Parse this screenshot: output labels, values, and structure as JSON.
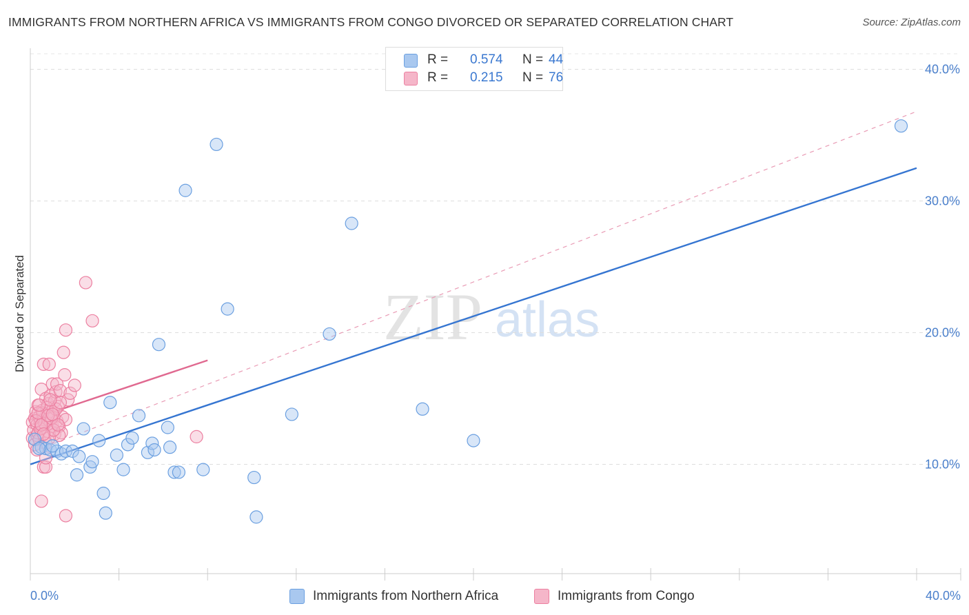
{
  "title": "IMMIGRANTS FROM NORTHERN AFRICA VS IMMIGRANTS FROM CONGO DIVORCED OR SEPARATED CORRELATION CHART",
  "source": "Source: ZipAtlas.com",
  "watermark": {
    "zip": "ZIP",
    "atlas": "atlas"
  },
  "legend": {
    "rows": [
      {
        "r_label": "R =",
        "r_value": "0.574",
        "n_label": "N =",
        "n_value": "44",
        "color": "#a9c8ef"
      },
      {
        "r_label": "R =",
        "r_value": "0.215",
        "n_label": "N =",
        "n_value": "76",
        "color": "#f5b6c9"
      }
    ]
  },
  "bottom_legend": [
    {
      "label": "Immigrants from Northern Africa",
      "color": "#a9c8ef"
    },
    {
      "label": "Immigrants from Congo",
      "color": "#f5b6c9"
    }
  ],
  "chart_data": {
    "type": "scatter",
    "title": "IMMIGRANTS FROM NORTHERN AFRICA VS IMMIGRANTS FROM CONGO DIVORCED OR SEPARATED CORRELATION CHART",
    "xlabel": "",
    "ylabel": "Divorced or Separated",
    "xlim": [
      0,
      40
    ],
    "ylim": [
      1.7,
      41.6
    ],
    "x_tick_labels": [
      "0.0%",
      "40.0%"
    ],
    "y_ticks": [
      10,
      20,
      30,
      40
    ],
    "y_tick_labels": [
      "10.0%",
      "20.0%",
      "30.0%",
      "40.0%"
    ],
    "grid": true,
    "series": [
      {
        "name": "Immigrants from Northern Africa",
        "color": "#6a9fe0",
        "fill": "#a9c8ef",
        "R": 0.574,
        "N": 44,
        "trend": {
          "x": [
            0,
            40
          ],
          "y": [
            10.0,
            32.5
          ],
          "style": "solid",
          "color": "#3575d1"
        },
        "points": [
          [
            0.2,
            11.9
          ],
          [
            0.5,
            11.3
          ],
          [
            0.7,
            11.2
          ],
          [
            0.9,
            11.1
          ],
          [
            1.2,
            11.0
          ],
          [
            1.4,
            10.8
          ],
          [
            1.6,
            11.0
          ],
          [
            1.9,
            11.0
          ],
          [
            2.2,
            10.6
          ],
          [
            2.1,
            9.2
          ],
          [
            2.4,
            12.7
          ],
          [
            2.7,
            9.8
          ],
          [
            2.8,
            10.2
          ],
          [
            3.1,
            11.8
          ],
          [
            3.3,
            7.8
          ],
          [
            3.4,
            6.3
          ],
          [
            3.6,
            14.7
          ],
          [
            3.9,
            10.7
          ],
          [
            4.2,
            9.6
          ],
          [
            4.4,
            11.5
          ],
          [
            4.6,
            12.0
          ],
          [
            4.9,
            13.7
          ],
          [
            5.3,
            10.9
          ],
          [
            5.5,
            11.6
          ],
          [
            5.6,
            11.1
          ],
          [
            5.8,
            19.1
          ],
          [
            6.2,
            12.8
          ],
          [
            6.3,
            11.3
          ],
          [
            6.5,
            9.4
          ],
          [
            6.7,
            9.4
          ],
          [
            7.0,
            30.8
          ],
          [
            7.8,
            9.6
          ],
          [
            8.4,
            34.3
          ],
          [
            8.9,
            21.8
          ],
          [
            10.1,
            9.0
          ],
          [
            10.2,
            6.0
          ],
          [
            11.8,
            13.8
          ],
          [
            13.5,
            19.9
          ],
          [
            14.5,
            28.3
          ],
          [
            17.7,
            14.2
          ],
          [
            20.0,
            11.8
          ],
          [
            39.3,
            35.7
          ],
          [
            0.4,
            11.2
          ],
          [
            1.0,
            11.4
          ]
        ]
      },
      {
        "name": "Immigrants from Congo",
        "color": "#ec7fa0",
        "fill": "#f5b6c9",
        "R": 0.215,
        "N": 76,
        "trend": {
          "x": [
            0,
            8.0
          ],
          "y": [
            13.4,
            17.9
          ],
          "style": "solid",
          "color": "#e06990"
        },
        "trend_extended": {
          "x": [
            0,
            40
          ],
          "y": [
            10.9,
            36.8
          ],
          "style": "dashed",
          "color": "#e99ab4"
        },
        "points": [
          [
            0.1,
            12.0
          ],
          [
            0.1,
            13.2
          ],
          [
            0.15,
            12.6
          ],
          [
            0.2,
            13.5
          ],
          [
            0.2,
            11.5
          ],
          [
            0.25,
            14.0
          ],
          [
            0.3,
            12.2
          ],
          [
            0.3,
            13.0
          ],
          [
            0.35,
            14.5
          ],
          [
            0.35,
            12.4
          ],
          [
            0.4,
            13.6
          ],
          [
            0.4,
            11.9
          ],
          [
            0.45,
            13.2
          ],
          [
            0.5,
            15.7
          ],
          [
            0.5,
            12.8
          ],
          [
            0.55,
            14.1
          ],
          [
            0.6,
            17.6
          ],
          [
            0.6,
            13.4
          ],
          [
            0.65,
            12.1
          ],
          [
            0.7,
            15.0
          ],
          [
            0.7,
            11.6
          ],
          [
            0.75,
            13.8
          ],
          [
            0.8,
            14.6
          ],
          [
            0.8,
            12.5
          ],
          [
            0.85,
            17.6
          ],
          [
            0.9,
            13.1
          ],
          [
            0.9,
            15.2
          ],
          [
            0.95,
            14.0
          ],
          [
            1.0,
            16.1
          ],
          [
            1.0,
            12.9
          ],
          [
            1.05,
            13.7
          ],
          [
            1.1,
            14.8
          ],
          [
            1.1,
            12.3
          ],
          [
            1.15,
            15.5
          ],
          [
            1.2,
            13.3
          ],
          [
            1.2,
            16.1
          ],
          [
            1.25,
            14.4
          ],
          [
            1.3,
            12.9
          ],
          [
            1.35,
            15.6
          ],
          [
            1.4,
            12.4
          ],
          [
            1.45,
            13.6
          ],
          [
            1.5,
            18.5
          ],
          [
            1.55,
            16.8
          ],
          [
            1.6,
            20.2
          ],
          [
            1.6,
            13.4
          ],
          [
            1.7,
            14.9
          ],
          [
            1.8,
            15.4
          ],
          [
            2.0,
            16.0
          ],
          [
            2.5,
            23.8
          ],
          [
            2.8,
            20.9
          ],
          [
            0.5,
            7.2
          ],
          [
            1.6,
            6.1
          ],
          [
            0.6,
            9.8
          ],
          [
            0.7,
            9.8
          ],
          [
            0.7,
            10.5
          ],
          [
            1.3,
            12.2
          ],
          [
            7.5,
            12.1
          ],
          [
            0.3,
            11.1
          ],
          [
            0.45,
            12.7
          ],
          [
            0.55,
            13.9
          ],
          [
            0.65,
            13.1
          ],
          [
            0.75,
            14.3
          ],
          [
            0.85,
            12.0
          ],
          [
            0.95,
            13.5
          ],
          [
            1.05,
            12.6
          ],
          [
            1.15,
            14.2
          ],
          [
            1.25,
            13.0
          ],
          [
            1.35,
            14.7
          ],
          [
            0.25,
            13.3
          ],
          [
            0.35,
            13.9
          ],
          [
            0.4,
            14.5
          ],
          [
            0.5,
            13.0
          ],
          [
            0.6,
            12.3
          ],
          [
            0.8,
            13.7
          ],
          [
            0.9,
            14.9
          ],
          [
            1.0,
            13.8
          ]
        ]
      }
    ]
  }
}
